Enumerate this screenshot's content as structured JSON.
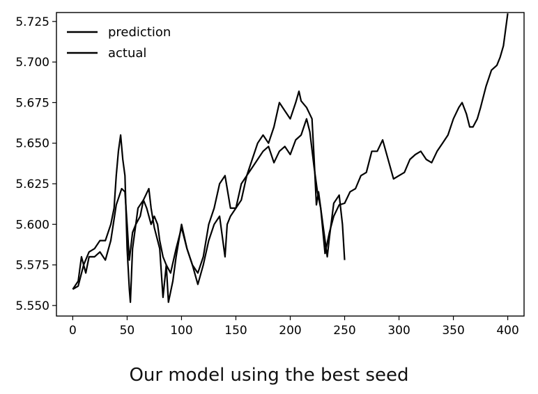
{
  "caption": "Our model using the best seed",
  "chart_data": {
    "type": "line",
    "title": "",
    "xlabel": "",
    "ylabel": "",
    "xlim": [
      -15,
      415
    ],
    "ylim": [
      5.5435,
      5.7305
    ],
    "xticks": [
      0,
      50,
      100,
      150,
      200,
      250,
      300,
      350,
      400
    ],
    "yticks": [
      5.55,
      5.575,
      5.6,
      5.625,
      5.65,
      5.675,
      5.7,
      5.725
    ],
    "ytick_labels": [
      "5.550",
      "5.575",
      "5.600",
      "5.625",
      "5.650",
      "5.675",
      "5.700",
      "5.725"
    ],
    "grid": false,
    "legend_position": "top-left",
    "series": [
      {
        "name": "prediction",
        "color": "#000000",
        "points": [
          [
            0,
            5.56
          ],
          [
            5,
            5.562
          ],
          [
            10,
            5.575
          ],
          [
            15,
            5.583
          ],
          [
            20,
            5.585
          ],
          [
            25,
            5.59
          ],
          [
            30,
            5.59
          ],
          [
            35,
            5.6
          ],
          [
            38,
            5.61
          ],
          [
            40,
            5.63
          ],
          [
            42,
            5.645
          ],
          [
            44,
            5.655
          ],
          [
            46,
            5.64
          ],
          [
            48,
            5.63
          ],
          [
            50,
            5.585
          ],
          [
            52,
            5.56
          ],
          [
            53,
            5.552
          ],
          [
            55,
            5.585
          ],
          [
            60,
            5.61
          ],
          [
            65,
            5.615
          ],
          [
            70,
            5.622
          ],
          [
            72,
            5.61
          ],
          [
            75,
            5.598
          ],
          [
            80,
            5.585
          ],
          [
            83,
            5.555
          ],
          [
            86,
            5.575
          ],
          [
            88,
            5.552
          ],
          [
            92,
            5.565
          ],
          [
            95,
            5.58
          ],
          [
            100,
            5.6
          ],
          [
            105,
            5.585
          ],
          [
            110,
            5.575
          ],
          [
            115,
            5.57
          ],
          [
            120,
            5.58
          ],
          [
            125,
            5.6
          ],
          [
            130,
            5.61
          ],
          [
            135,
            5.625
          ],
          [
            140,
            5.63
          ],
          [
            145,
            5.61
          ],
          [
            150,
            5.61
          ],
          [
            155,
            5.625
          ],
          [
            160,
            5.63
          ],
          [
            165,
            5.64
          ],
          [
            170,
            5.65
          ],
          [
            175,
            5.655
          ],
          [
            180,
            5.65
          ],
          [
            185,
            5.66
          ],
          [
            190,
            5.675
          ],
          [
            195,
            5.67
          ],
          [
            200,
            5.665
          ],
          [
            205,
            5.675
          ],
          [
            208,
            5.682
          ],
          [
            210,
            5.676
          ],
          [
            215,
            5.672
          ],
          [
            220,
            5.665
          ],
          [
            222,
            5.64
          ],
          [
            224,
            5.612
          ],
          [
            226,
            5.62
          ],
          [
            230,
            5.6
          ],
          [
            234,
            5.58
          ],
          [
            236,
            5.592
          ],
          [
            240,
            5.613
          ],
          [
            245,
            5.618
          ],
          [
            248,
            5.6
          ],
          [
            250,
            5.578
          ]
        ]
      },
      {
        "name": "actual",
        "color": "#000000",
        "points": [
          [
            0,
            5.56
          ],
          [
            5,
            5.565
          ],
          [
            8,
            5.58
          ],
          [
            12,
            5.57
          ],
          [
            15,
            5.58
          ],
          [
            20,
            5.58
          ],
          [
            25,
            5.583
          ],
          [
            30,
            5.578
          ],
          [
            35,
            5.59
          ],
          [
            40,
            5.612
          ],
          [
            45,
            5.622
          ],
          [
            48,
            5.62
          ],
          [
            50,
            5.6
          ],
          [
            52,
            5.578
          ],
          [
            55,
            5.595
          ],
          [
            58,
            5.6
          ],
          [
            62,
            5.605
          ],
          [
            65,
            5.615
          ],
          [
            68,
            5.61
          ],
          [
            72,
            5.6
          ],
          [
            75,
            5.605
          ],
          [
            78,
            5.6
          ],
          [
            80,
            5.59
          ],
          [
            83,
            5.58
          ],
          [
            86,
            5.575
          ],
          [
            90,
            5.57
          ],
          [
            95,
            5.585
          ],
          [
            100,
            5.598
          ],
          [
            105,
            5.585
          ],
          [
            110,
            5.575
          ],
          [
            115,
            5.563
          ],
          [
            120,
            5.575
          ],
          [
            125,
            5.59
          ],
          [
            130,
            5.6
          ],
          [
            135,
            5.605
          ],
          [
            140,
            5.58
          ],
          [
            142,
            5.6
          ],
          [
            145,
            5.605
          ],
          [
            150,
            5.61
          ],
          [
            155,
            5.615
          ],
          [
            160,
            5.63
          ],
          [
            165,
            5.635
          ],
          [
            170,
            5.64
          ],
          [
            175,
            5.645
          ],
          [
            180,
            5.648
          ],
          [
            185,
            5.638
          ],
          [
            190,
            5.645
          ],
          [
            195,
            5.648
          ],
          [
            200,
            5.643
          ],
          [
            205,
            5.652
          ],
          [
            210,
            5.655
          ],
          [
            215,
            5.665
          ],
          [
            218,
            5.657
          ],
          [
            222,
            5.635
          ],
          [
            225,
            5.62
          ],
          [
            228,
            5.61
          ],
          [
            232,
            5.582
          ],
          [
            236,
            5.595
          ],
          [
            240,
            5.605
          ],
          [
            245,
            5.612
          ],
          [
            250,
            5.613
          ],
          [
            255,
            5.62
          ],
          [
            260,
            5.622
          ],
          [
            265,
            5.63
          ],
          [
            270,
            5.632
          ],
          [
            275,
            5.645
          ],
          [
            280,
            5.645
          ],
          [
            285,
            5.652
          ],
          [
            290,
            5.64
          ],
          [
            295,
            5.628
          ],
          [
            300,
            5.63
          ],
          [
            305,
            5.632
          ],
          [
            310,
            5.64
          ],
          [
            315,
            5.643
          ],
          [
            320,
            5.645
          ],
          [
            325,
            5.64
          ],
          [
            330,
            5.638
          ],
          [
            335,
            5.645
          ],
          [
            340,
            5.65
          ],
          [
            345,
            5.655
          ],
          [
            350,
            5.665
          ],
          [
            355,
            5.672
          ],
          [
            358,
            5.675
          ],
          [
            362,
            5.668
          ],
          [
            365,
            5.66
          ],
          [
            368,
            5.66
          ],
          [
            372,
            5.665
          ],
          [
            375,
            5.672
          ],
          [
            380,
            5.685
          ],
          [
            385,
            5.695
          ],
          [
            390,
            5.698
          ],
          [
            393,
            5.703
          ],
          [
            396,
            5.71
          ],
          [
            398,
            5.72
          ],
          [
            400,
            5.73
          ]
        ]
      }
    ]
  }
}
